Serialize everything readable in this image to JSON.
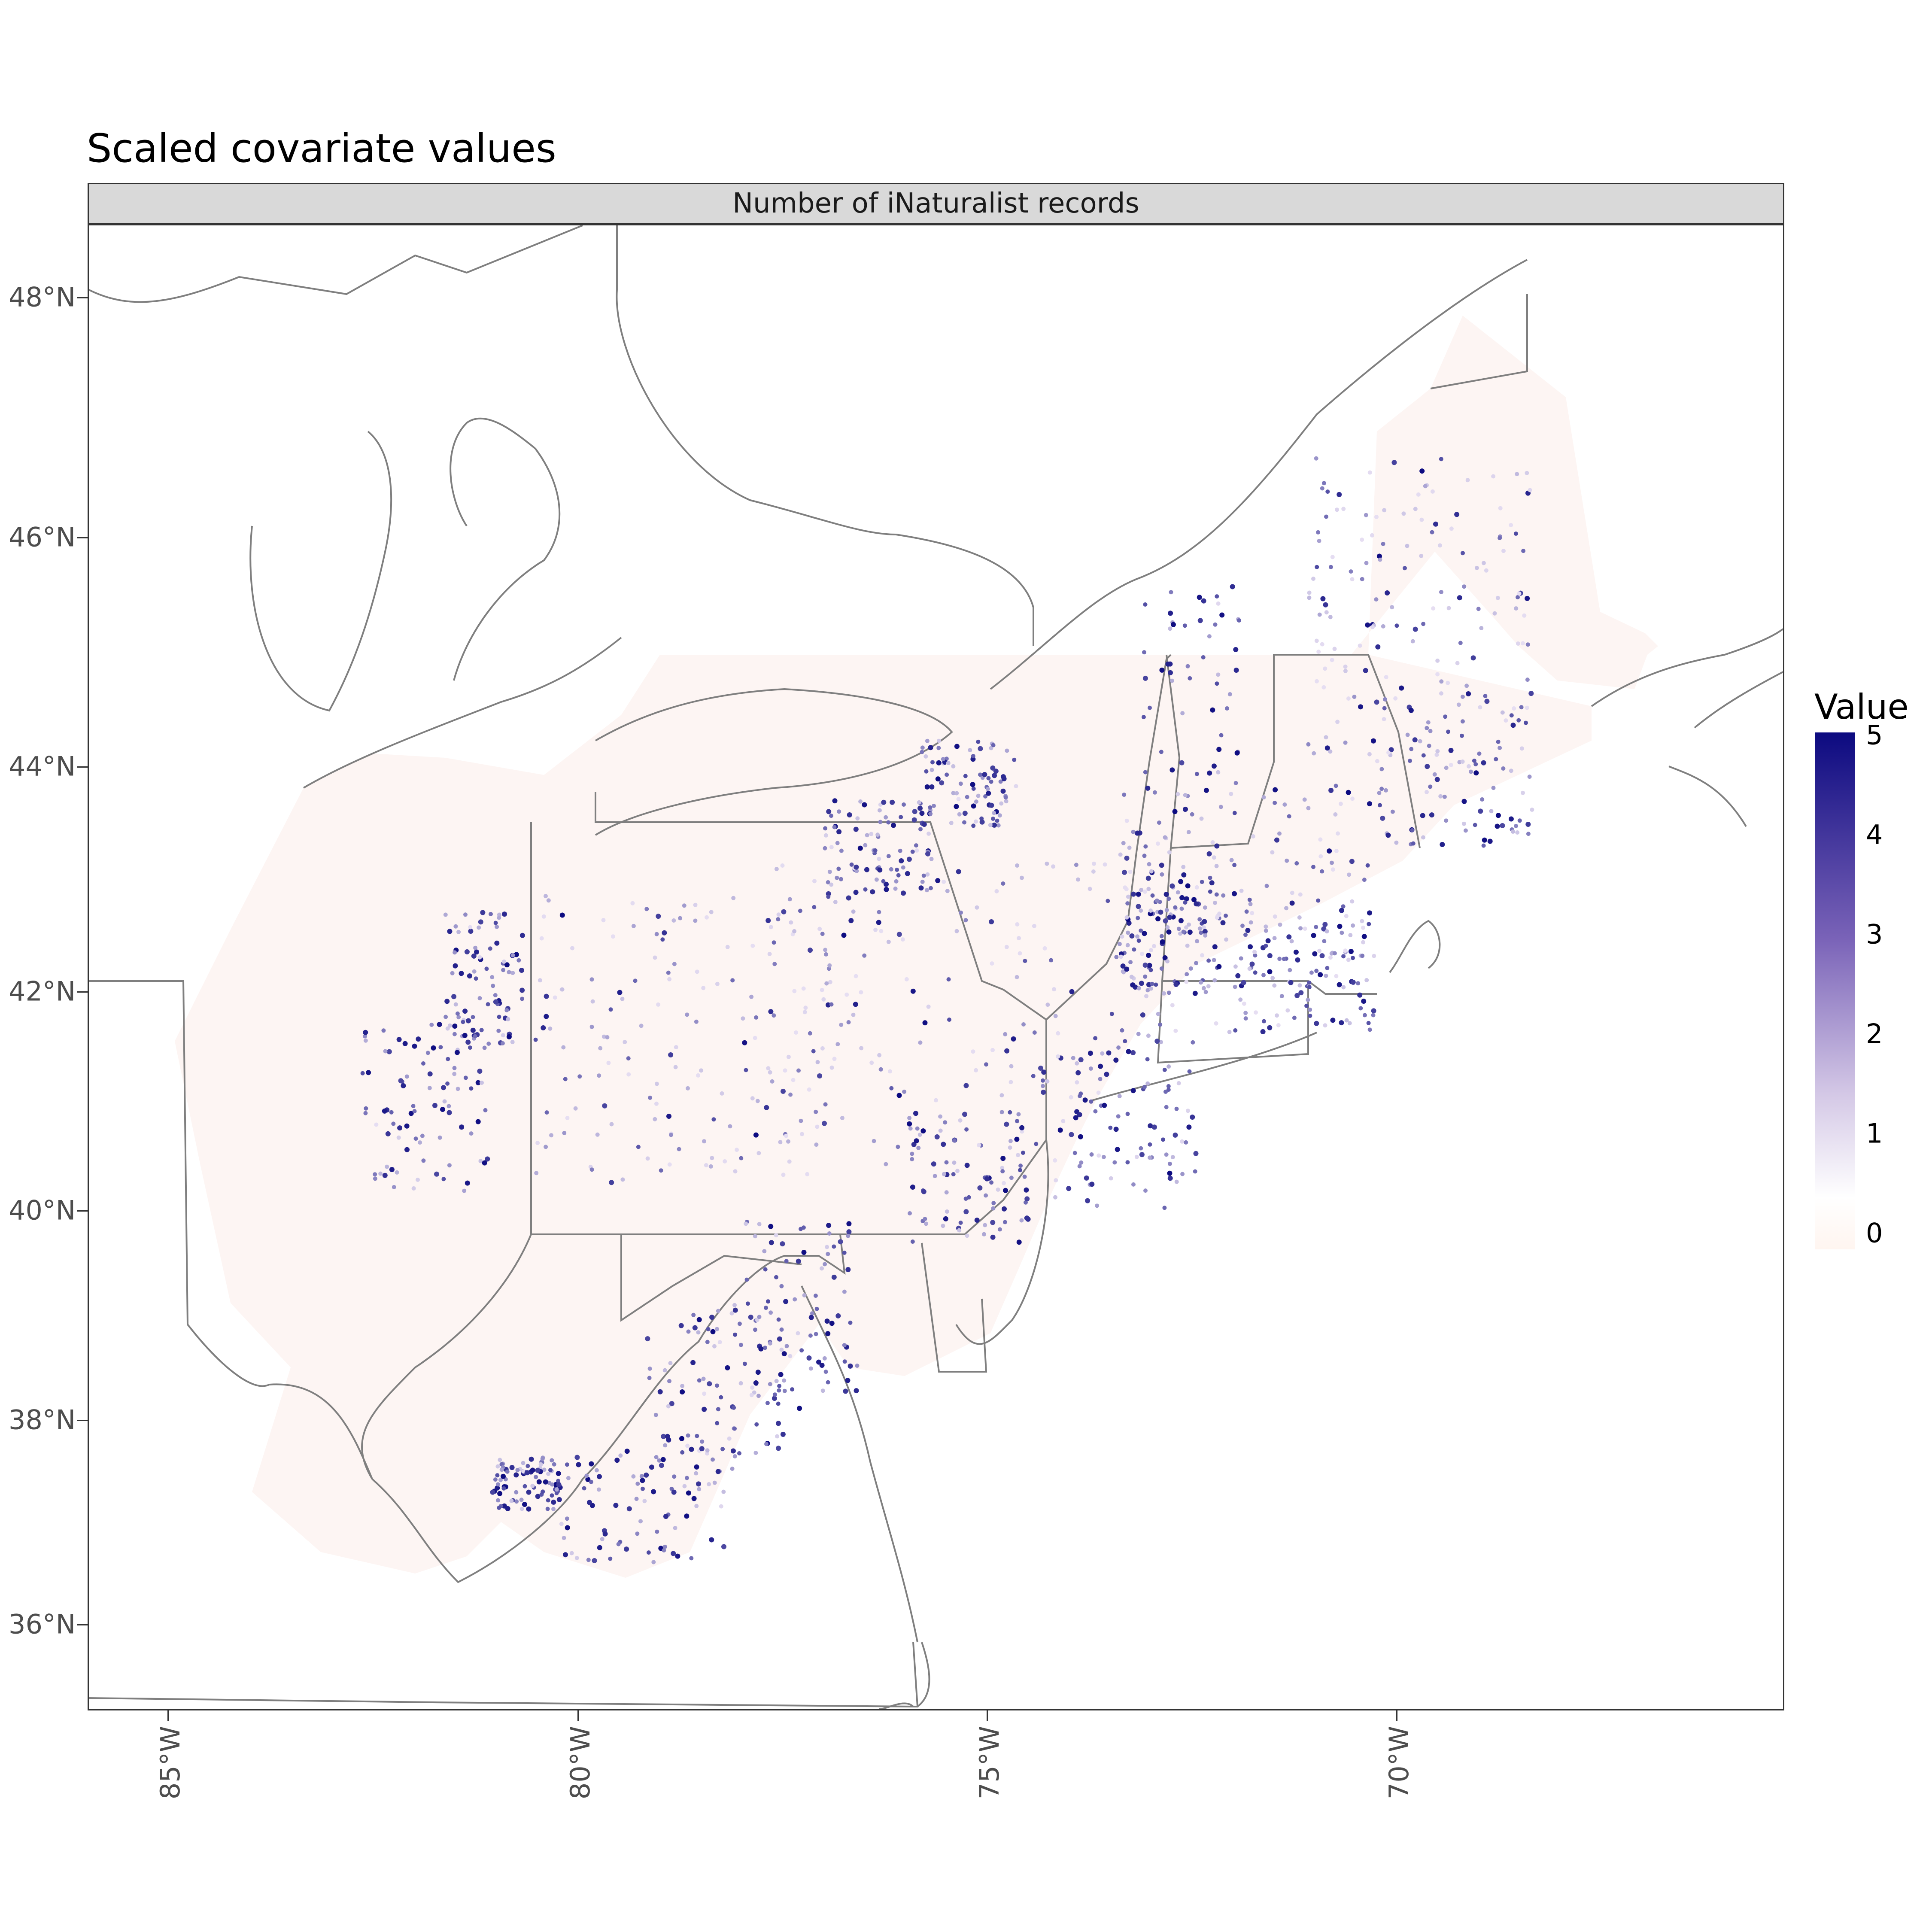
{
  "figure": {
    "title": "Scaled covariate values",
    "facet_label": "Number of iNaturalist records"
  },
  "axes": {
    "y_ticks": [
      "36°N",
      "38°N",
      "40°N",
      "42°N",
      "44°N",
      "46°N",
      "48°N"
    ],
    "x_ticks": [
      "85°W",
      "80°W",
      "75°W",
      "70°W"
    ]
  },
  "legend": {
    "title": "Value",
    "labels": [
      "0",
      "1",
      "2",
      "3",
      "4",
      "5"
    ],
    "low_color": "#fff5f0",
    "mid_color": "#d4c8e6",
    "high_color": "#0c0a80",
    "range": [
      0,
      5
    ]
  },
  "map": {
    "border_color": "#7f7f7f",
    "region_fill": "#fdf5f3",
    "point_color_scale": "Value"
  }
}
